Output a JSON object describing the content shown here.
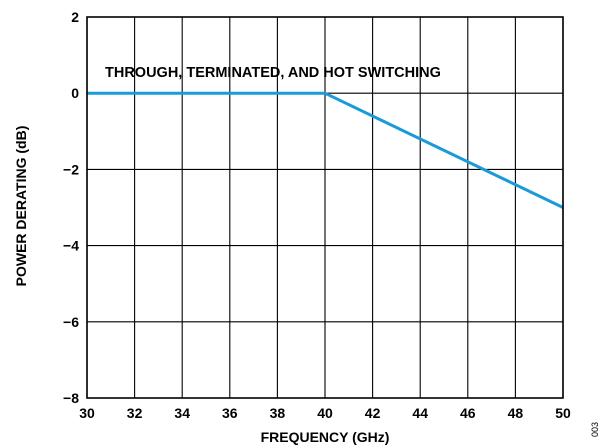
{
  "chart_data": {
    "type": "line",
    "title": "",
    "xlabel": "FREQUENCY (GHz)",
    "ylabel": "POWER DERATING (dB)",
    "xlim": [
      30,
      50
    ],
    "ylim": [
      -8,
      2
    ],
    "xticks": [
      30,
      32,
      34,
      36,
      38,
      40,
      42,
      44,
      46,
      48,
      50
    ],
    "yticks": [
      2,
      0,
      -2,
      -4,
      -6,
      -8
    ],
    "ytick_labels": [
      "2",
      "0",
      "−2",
      "−4",
      "−6",
      "−8"
    ],
    "grid": true,
    "series": [
      {
        "x": [
          30,
          40,
          50
        ],
        "y": [
          0,
          0,
          -3
        ],
        "color": "#1a9bd7"
      }
    ],
    "annotations": [
      "THROUGH, TERMINATED, AND HOT SWITCHING"
    ],
    "figure_id": "003"
  }
}
